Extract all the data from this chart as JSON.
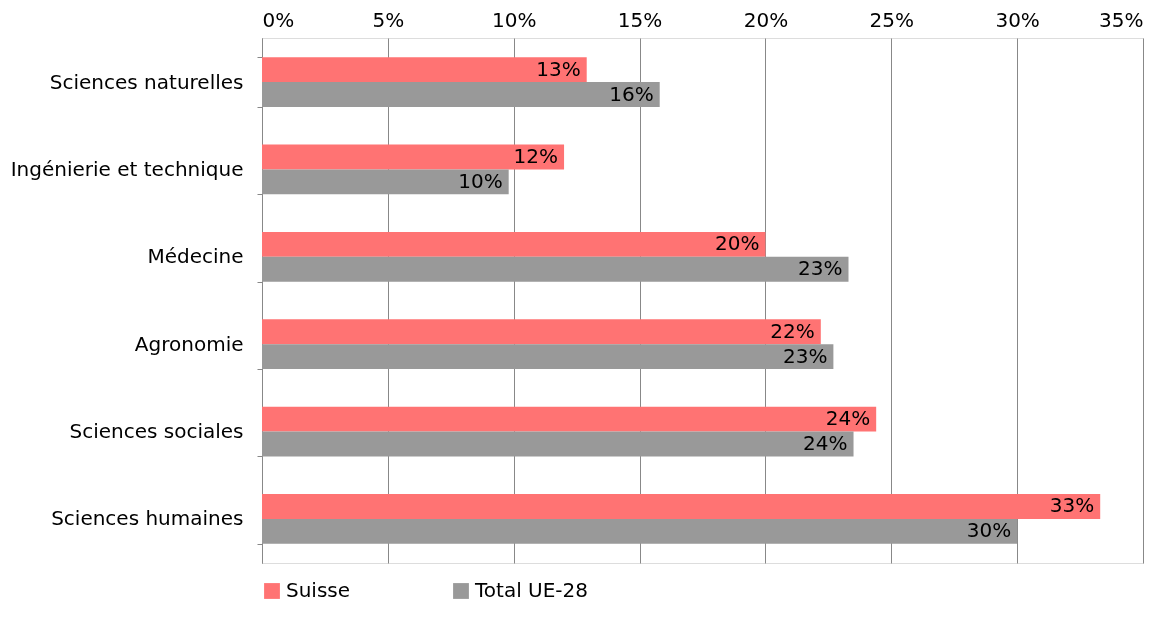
{
  "chart_data": {
    "type": "bar",
    "orientation": "horizontal",
    "categories": [
      "Sciences naturelles",
      "Ingénierie et technique",
      "Médecine",
      "Agronomie",
      "Sciences sociales",
      "Sciences humaines"
    ],
    "series": [
      {
        "name": "Suisse",
        "color": "#ff7373",
        "values": [
          12.9,
          12.0,
          20.0,
          22.2,
          24.4,
          33.3
        ],
        "value_labels": [
          "13%",
          "12%",
          "20%",
          "22%",
          "24%",
          "33%"
        ]
      },
      {
        "name": "Total UE-28",
        "color": "#999999",
        "values": [
          15.8,
          9.8,
          23.3,
          22.7,
          23.5,
          30.0
        ],
        "value_labels": [
          "16%",
          "10%",
          "23%",
          "23%",
          "24%",
          "30%"
        ]
      }
    ],
    "xlim": [
      0,
      35
    ],
    "xticks": [
      {
        "value": 0,
        "label": "0%"
      },
      {
        "value": 5,
        "label": "5%"
      },
      {
        "value": 10,
        "label": "10%"
      },
      {
        "value": 15,
        "label": "15%"
      },
      {
        "value": 20,
        "label": "20%"
      },
      {
        "value": 25,
        "label": "25%"
      },
      {
        "value": 30,
        "label": "30%"
      },
      {
        "value": 35,
        "label": "35%"
      }
    ],
    "grid": "x",
    "legend": "bottom"
  }
}
